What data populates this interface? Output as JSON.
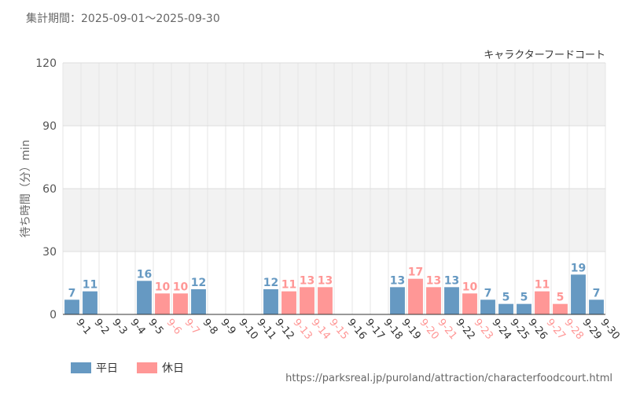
{
  "header": {
    "period_label": "集計期間：",
    "period_range": "2025-09-01～2025-09-30"
  },
  "colors": {
    "weekday": "#6699c2",
    "holiday": "#ff9796",
    "grid_band": "#f2f2f2",
    "grid_line": "#dddddd"
  },
  "legend": {
    "weekday_label": "平日",
    "holiday_label": "休日"
  },
  "source_url": "https://parksreal.jp/puroland/attraction/characterfoodcourt.html",
  "chart_data": {
    "type": "bar",
    "title": "キャラクターフードコート",
    "xlabel": "",
    "ylabel": "待ち時間（分）min",
    "ylim": [
      0,
      120
    ],
    "yticks": [
      0,
      30,
      60,
      90,
      120
    ],
    "categories": [
      "9-1",
      "9-2",
      "9-3",
      "9-4",
      "9-5",
      "9-6",
      "9-7",
      "9-8",
      "9-9",
      "9-10",
      "9-11",
      "9-12",
      "9-13",
      "9-14",
      "9-15",
      "9-16",
      "9-17",
      "9-18",
      "9-19",
      "9-20",
      "9-21",
      "9-22",
      "9-23",
      "9-24",
      "9-25",
      "9-26",
      "9-27",
      "9-28",
      "9-29",
      "9-30"
    ],
    "values": [
      7,
      11,
      null,
      null,
      16,
      10,
      10,
      12,
      null,
      null,
      null,
      12,
      11,
      13,
      13,
      null,
      null,
      null,
      13,
      17,
      13,
      13,
      10,
      7,
      5,
      5,
      11,
      5,
      19,
      7
    ],
    "day_type": [
      "weekday",
      "weekday",
      "weekday",
      "weekday",
      "weekday",
      "holiday",
      "holiday",
      "weekday",
      "weekday",
      "weekday",
      "weekday",
      "weekday",
      "holiday",
      "holiday",
      "holiday",
      "weekday",
      "weekday",
      "weekday",
      "weekday",
      "holiday",
      "holiday",
      "weekday",
      "holiday",
      "weekday",
      "weekday",
      "weekday",
      "holiday",
      "holiday",
      "weekday",
      "weekday"
    ]
  }
}
